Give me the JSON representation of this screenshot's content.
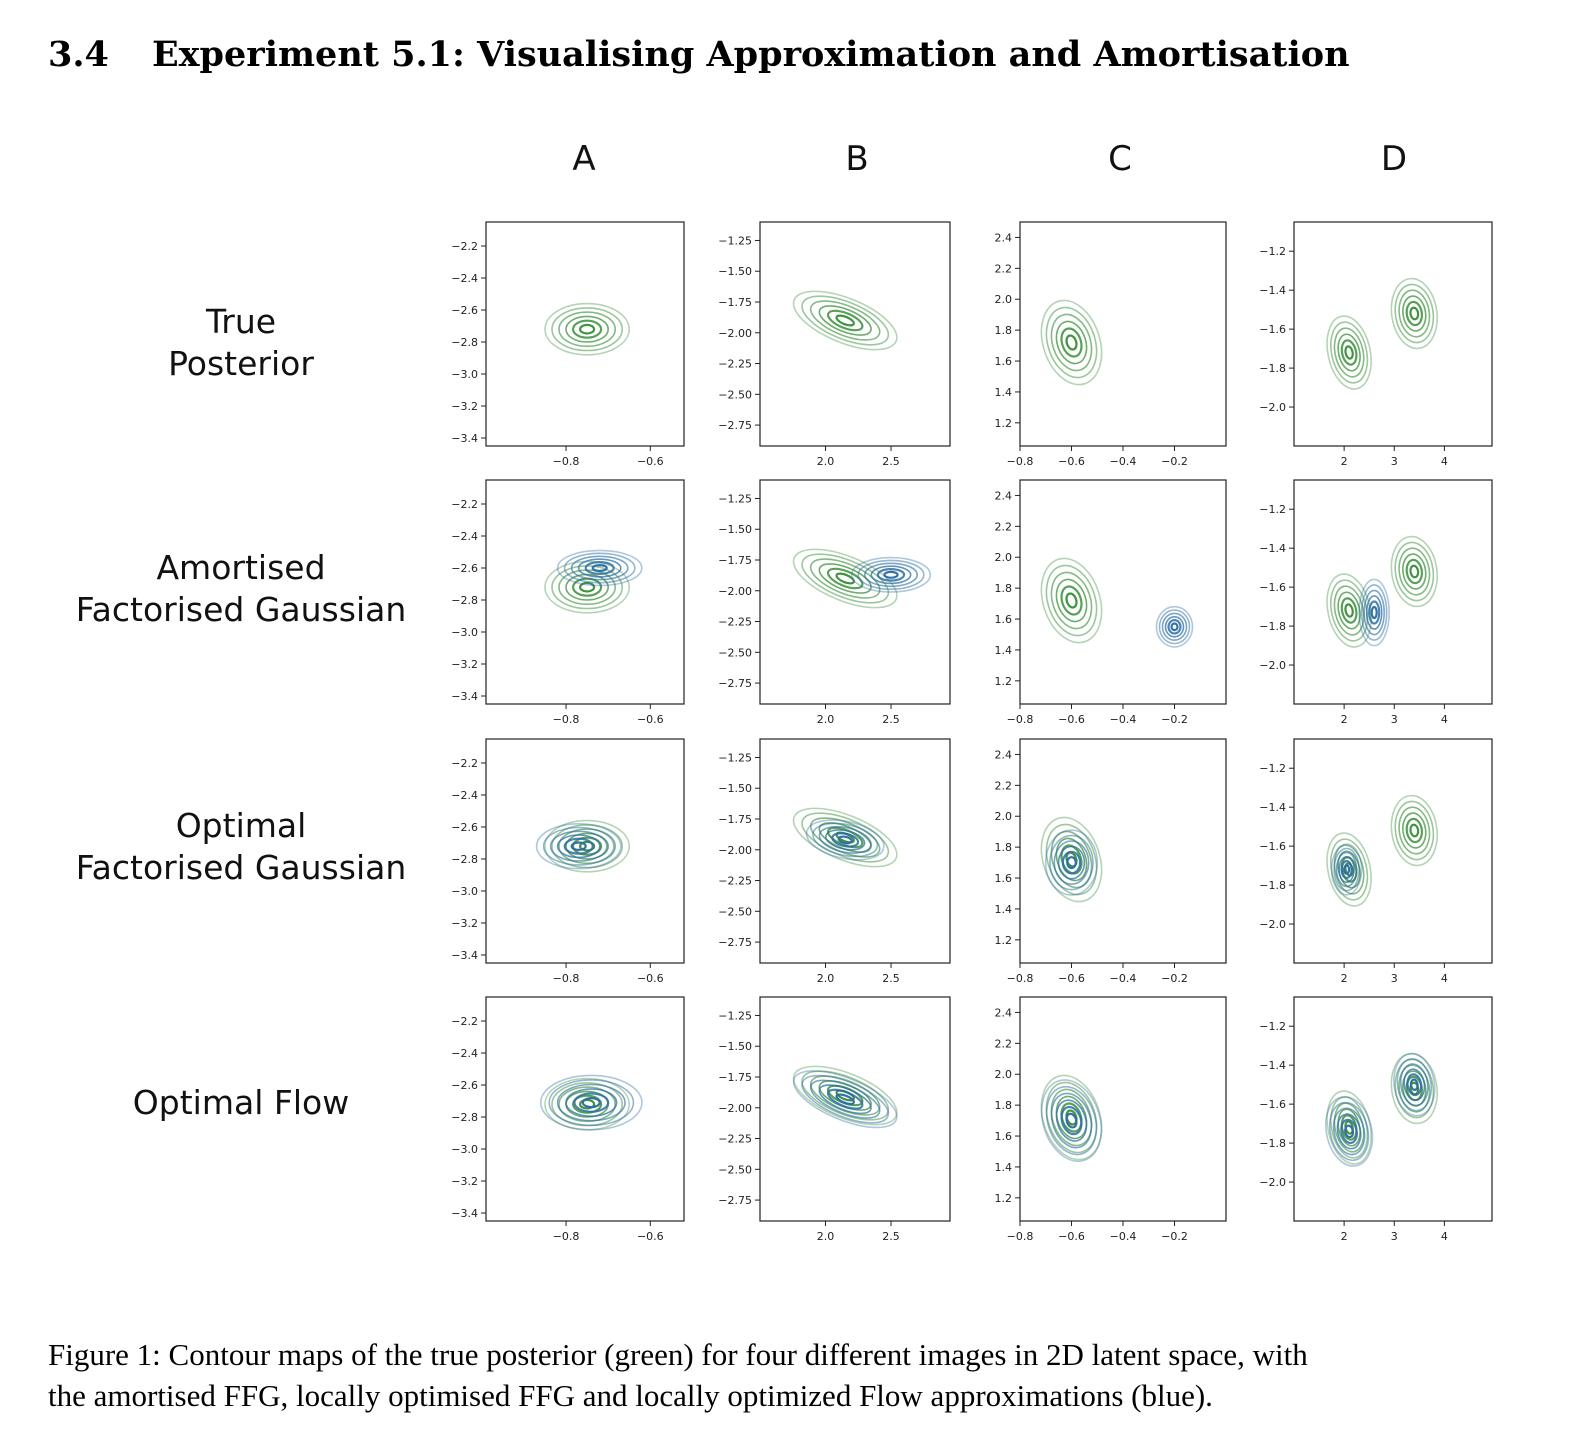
{
  "section": {
    "number": "3.4",
    "title": "Experiment 5.1: Visualising Approximation and Amortisation"
  },
  "figure": {
    "columns": [
      "A",
      "B",
      "C",
      "D"
    ],
    "rows": [
      {
        "lines": [
          "True",
          "Posterior"
        ]
      },
      {
        "lines": [
          "Amortised",
          "Factorised Gaussian"
        ]
      },
      {
        "lines": [
          "Optimal",
          "Factorised Gaussian"
        ]
      },
      {
        "lines": [
          "Optimal Flow"
        ]
      }
    ],
    "colors": {
      "true_posterior": "#3a8f3a",
      "approximation": "#2c6da4"
    }
  },
  "caption": {
    "line1": "Figure 1: Contour maps of the true posterior (green) for four different images in 2D latent space, with",
    "line2": "the amortised FFG, locally optimised FFG and locally optimized Flow approximations (blue)."
  },
  "chart_data": [
    {
      "type": "contour",
      "panel": "A",
      "xlim": [
        -0.99,
        -0.52
      ],
      "ylim": [
        -3.45,
        -2.05
      ],
      "xticks": [
        -0.8,
        -0.6
      ],
      "xtick_labels": [
        "−0.8",
        "−0.6"
      ],
      "yticks": [
        -2.2,
        -2.4,
        -2.6,
        -2.8,
        -3.0,
        -3.2,
        -3.4
      ],
      "ytick_labels": [
        "−2.2",
        "−2.4",
        "−2.6",
        "−2.8",
        "−3.0",
        "−3.2",
        "−3.4"
      ],
      "true_posterior": [
        {
          "x": -0.75,
          "y": -2.72,
          "sx": 0.1,
          "sy": 0.16,
          "rot": 0
        }
      ],
      "amortised_ffg": [
        {
          "x": -0.72,
          "y": -2.6,
          "sx": 0.1,
          "sy": 0.11,
          "rot": 0
        }
      ],
      "optimal_ffg": [
        {
          "x": -0.77,
          "y": -2.72,
          "sx": 0.1,
          "sy": 0.14,
          "rot": 0
        }
      ],
      "optimal_flow": [
        {
          "x": -0.74,
          "y": -2.71,
          "sx": 0.12,
          "sy": 0.17,
          "rot": 0
        }
      ]
    },
    {
      "type": "contour",
      "panel": "B",
      "xlim": [
        1.5,
        2.95
      ],
      "ylim": [
        -2.92,
        -1.1
      ],
      "xticks": [
        2.0,
        2.5
      ],
      "xtick_labels": [
        "2.0",
        "2.5"
      ],
      "yticks": [
        -1.25,
        -1.5,
        -1.75,
        -2.0,
        -2.25,
        -2.5,
        -2.75
      ],
      "ytick_labels": [
        "−1.25",
        "−1.50",
        "−1.75",
        "−2.00",
        "−2.25",
        "−2.50",
        "−2.75"
      ],
      "true_posterior": [
        {
          "x": 2.15,
          "y": -1.9,
          "sx": 0.42,
          "sy": 0.18,
          "rot": 22
        }
      ],
      "amortised_ffg": [
        {
          "x": 2.5,
          "y": -1.87,
          "sx": 0.3,
          "sy": 0.14,
          "rot": 0
        }
      ],
      "optimal_ffg": [
        {
          "x": 2.15,
          "y": -1.92,
          "sx": 0.3,
          "sy": 0.15,
          "rot": 12
        }
      ],
      "optimal_flow": [
        {
          "x": 2.15,
          "y": -1.93,
          "sx": 0.42,
          "sy": 0.17,
          "rot": 22
        }
      ]
    },
    {
      "type": "contour",
      "panel": "C",
      "xlim": [
        -0.8,
        0.0
      ],
      "ylim": [
        1.05,
        2.5
      ],
      "xticks": [
        -0.8,
        -0.6,
        -0.4,
        -0.2
      ],
      "xtick_labels": [
        "−0.8",
        "−0.6",
        "−0.4",
        "−0.2"
      ],
      "yticks": [
        2.4,
        2.2,
        2.0,
        1.8,
        1.6,
        1.4,
        1.2
      ],
      "ytick_labels": [
        "2.4",
        "2.2",
        "2.0",
        "1.8",
        "1.6",
        "1.4",
        "1.2"
      ],
      "true_posterior": [
        {
          "x": -0.6,
          "y": 1.72,
          "sx": 0.11,
          "sy": 0.28,
          "rot": -18
        }
      ],
      "amortised_ffg": [
        {
          "x": -0.2,
          "y": 1.55,
          "sx": 0.07,
          "sy": 0.13,
          "rot": 0
        }
      ],
      "optimal_ffg": [
        {
          "x": -0.6,
          "y": 1.7,
          "sx": 0.1,
          "sy": 0.21,
          "rot": 0
        }
      ],
      "optimal_flow": [
        {
          "x": -0.6,
          "y": 1.7,
          "sx": 0.11,
          "sy": 0.27,
          "rot": -18
        }
      ]
    },
    {
      "type": "contour",
      "panel": "D",
      "xlim": [
        1.0,
        4.95
      ],
      "ylim": [
        -2.2,
        -1.05
      ],
      "xticks": [
        2,
        3,
        4
      ],
      "xtick_labels": [
        "2",
        "3",
        "4"
      ],
      "yticks": [
        -1.2,
        -1.4,
        -1.6,
        -1.8,
        -2.0
      ],
      "ytick_labels": [
        "−1.2",
        "−1.4",
        "−1.6",
        "−1.8",
        "−2.0"
      ],
      "true_posterior": [
        {
          "x": 2.1,
          "y": -1.72,
          "sx": 0.42,
          "sy": 0.19,
          "rot": -12
        },
        {
          "x": 3.4,
          "y": -1.52,
          "sx": 0.45,
          "sy": 0.18,
          "rot": -8
        }
      ],
      "amortised_ffg": [
        {
          "x": 2.6,
          "y": -1.73,
          "sx": 0.3,
          "sy": 0.17,
          "rot": 0
        }
      ],
      "optimal_ffg": [
        {
          "x": 2.05,
          "y": -1.72,
          "sx": 0.3,
          "sy": 0.13,
          "rot": 0
        }
      ],
      "optimal_flow": [
        {
          "x": 2.1,
          "y": -1.74,
          "sx": 0.45,
          "sy": 0.18,
          "rot": -12
        },
        {
          "x": 3.4,
          "y": -1.5,
          "sx": 0.4,
          "sy": 0.16,
          "rot": -8
        }
      ]
    }
  ]
}
